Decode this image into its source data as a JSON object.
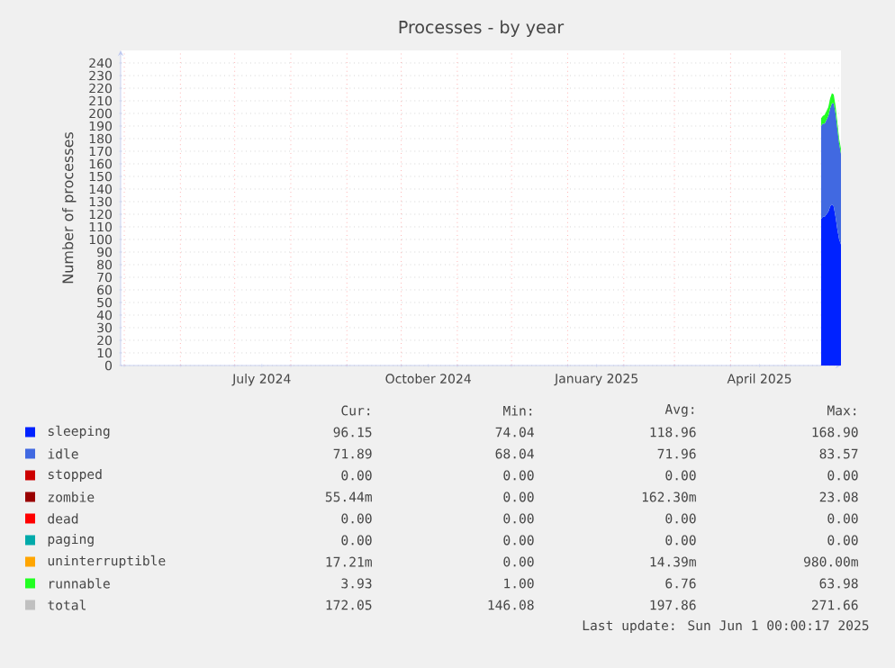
{
  "chart_data": {
    "type": "area",
    "stacked": true,
    "title": "Processes - by year",
    "ylabel": "Number of processes",
    "x": [
      "2025-05-21",
      "2025-05-22",
      "2025-05-23",
      "2025-05-24",
      "2025-05-25",
      "2025-05-26",
      "2025-05-27",
      "2025-05-28",
      "2025-05-29",
      "2025-05-30",
      "2025-05-31",
      "2025-06-01"
    ],
    "series": [
      {
        "name": "sleeping",
        "color": "#0022ff",
        "values": [
          116,
          118,
          118,
          120,
          122,
          126,
          128,
          126,
          118,
          108,
          100,
          96
        ]
      },
      {
        "name": "idle",
        "color": "#4169e1",
        "values": [
          74,
          74,
          74,
          75,
          76,
          78,
          80,
          82,
          82,
          80,
          76,
          72
        ]
      },
      {
        "name": "stopped",
        "color": "#cc0000",
        "values": [
          null,
          null,
          null,
          null,
          null,
          null,
          null,
          null,
          null,
          null,
          null,
          null
        ]
      },
      {
        "name": "zombie",
        "color": "#990000",
        "values": [
          null,
          null,
          null,
          null,
          null,
          null,
          null,
          null,
          null,
          null,
          null,
          null
        ]
      },
      {
        "name": "dead",
        "color": "#ff0000",
        "values": [
          null,
          null,
          null,
          null,
          null,
          null,
          null,
          null,
          null,
          null,
          null,
          null
        ]
      },
      {
        "name": "paging",
        "color": "#00aaaa",
        "values": [
          null,
          null,
          null,
          null,
          null,
          null,
          null,
          null,
          null,
          null,
          null,
          null
        ]
      },
      {
        "name": "uninterruptible",
        "color": "#ffa500",
        "values": [
          null,
          null,
          null,
          null,
          null,
          null,
          null,
          null,
          null,
          null,
          null,
          null
        ]
      },
      {
        "name": "runnable",
        "color": "#22ff22",
        "values": [
          6,
          6,
          7,
          7,
          7,
          8,
          8,
          7,
          6,
          5,
          4,
          4
        ]
      },
      {
        "name": "total",
        "color": "#c0c0c0",
        "values": [
          null,
          null,
          null,
          null,
          null,
          null,
          null,
          null,
          null,
          null,
          null,
          null
        ]
      }
    ],
    "xlim": [
      "2024-04-29",
      "2025-06-01"
    ],
    "xticks": [
      {
        "value": "2024-05-01",
        "label": null
      },
      {
        "value": "2024-06-01",
        "label": null
      },
      {
        "value": "2024-07-01",
        "label": null
      },
      {
        "value": "2024-07-16",
        "label": "July 2024"
      },
      {
        "value": "2024-08-01",
        "label": null
      },
      {
        "value": "2024-09-01",
        "label": null
      },
      {
        "value": "2024-10-01",
        "label": null
      },
      {
        "value": "2024-10-16",
        "label": "October 2024"
      },
      {
        "value": "2024-11-01",
        "label": null
      },
      {
        "value": "2024-12-01",
        "label": null
      },
      {
        "value": "2025-01-01",
        "label": null
      },
      {
        "value": "2025-01-17",
        "label": "January 2025"
      },
      {
        "value": "2025-02-01",
        "label": null
      },
      {
        "value": "2025-03-01",
        "label": null
      },
      {
        "value": "2025-04-01",
        "label": null
      },
      {
        "value": "2025-04-17",
        "label": "April 2025"
      },
      {
        "value": "2025-05-01",
        "label": null
      }
    ],
    "ylim": [
      0,
      250
    ],
    "yticks": [
      0,
      10,
      20,
      30,
      40,
      50,
      60,
      70,
      80,
      90,
      100,
      110,
      120,
      130,
      140,
      150,
      160,
      170,
      180,
      190,
      200,
      210,
      220,
      230,
      240
    ],
    "grid": true,
    "legend": "bottom",
    "annotations": [
      "Cur:",
      "Min:",
      "Avg:",
      "Max:",
      "96.15",
      "74.04",
      "118.96",
      "168.90",
      "71.89",
      "68.04",
      "71.96",
      "83.57",
      "0.00",
      "0.00",
      "0.00",
      "0.00",
      "55.44m",
      "0.00",
      "162.30m",
      "23.08",
      "0.00",
      "0.00",
      "0.00",
      "0.00",
      "0.00",
      "0.00",
      "0.00",
      "0.00",
      "17.21m",
      "0.00",
      "14.39m",
      "980.00m",
      "3.93",
      "1.00",
      "6.76",
      "63.98",
      "172.05",
      "146.08",
      "197.86",
      "271.66",
      "Last update: Sun Jun  1 00:00:17 2025"
    ]
  }
}
